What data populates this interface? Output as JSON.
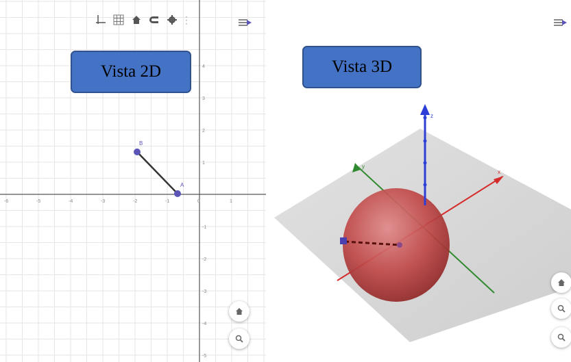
{
  "view2d": {
    "caption": "Vista 2D",
    "x_tick_labels": [
      "-6",
      "-5",
      "-4",
      "-3",
      "-2",
      "-1",
      "0",
      "1"
    ],
    "y_tick_labels": [
      "4",
      "3",
      "2",
      "1",
      "-1",
      "-2",
      "-3",
      "-4",
      "-5"
    ],
    "point_B_label": "B",
    "point_A_label": "A",
    "toolbar": {
      "axes_icon": "axes-icon",
      "grid_icon": "grid-icon",
      "home_icon": "home-icon",
      "magnet_icon": "magnet-icon",
      "gear_icon": "gear-icon",
      "separator": "⋮"
    }
  },
  "view3d": {
    "caption": "Vista 3D",
    "z_axis_label": "z",
    "x_axis_label": "x",
    "y_axis_label": "y"
  },
  "colors": {
    "caption_fill": "#4472c4",
    "sphere": "#b83a3a",
    "point": "#5c55b8",
    "z_axis": "#2b3ed6",
    "x_axis": "#d62b2b",
    "y_axis": "#2f8a2f"
  }
}
